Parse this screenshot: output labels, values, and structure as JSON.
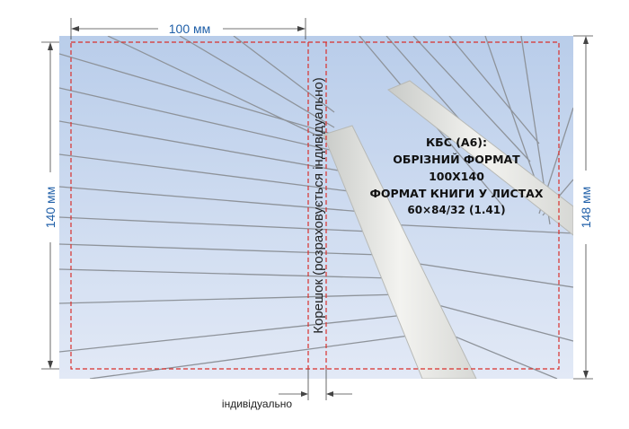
{
  "dimensions": {
    "top_width": "100 мм",
    "left_height": "140 мм",
    "right_height": "148 мм",
    "spine_bottom_label": "індивідуально"
  },
  "spine": {
    "label": "Корешок (розраховується індивідуально)"
  },
  "spec": {
    "line1": "КБС (А6):",
    "line2": "ОБРІЗНИЙ ФОРМАТ",
    "line3": "100Х140",
    "line4": "ФОРМАТ КНИГИ У ЛИСТАХ",
    "line5": "60×84/32 (1.41)"
  },
  "colors": {
    "dimension": "#1f5fa8",
    "trim_line": "#d9302c",
    "sky_top": "#b9cdea",
    "sky_bottom": "#dfe7f5",
    "pylon": "#ecece8"
  }
}
